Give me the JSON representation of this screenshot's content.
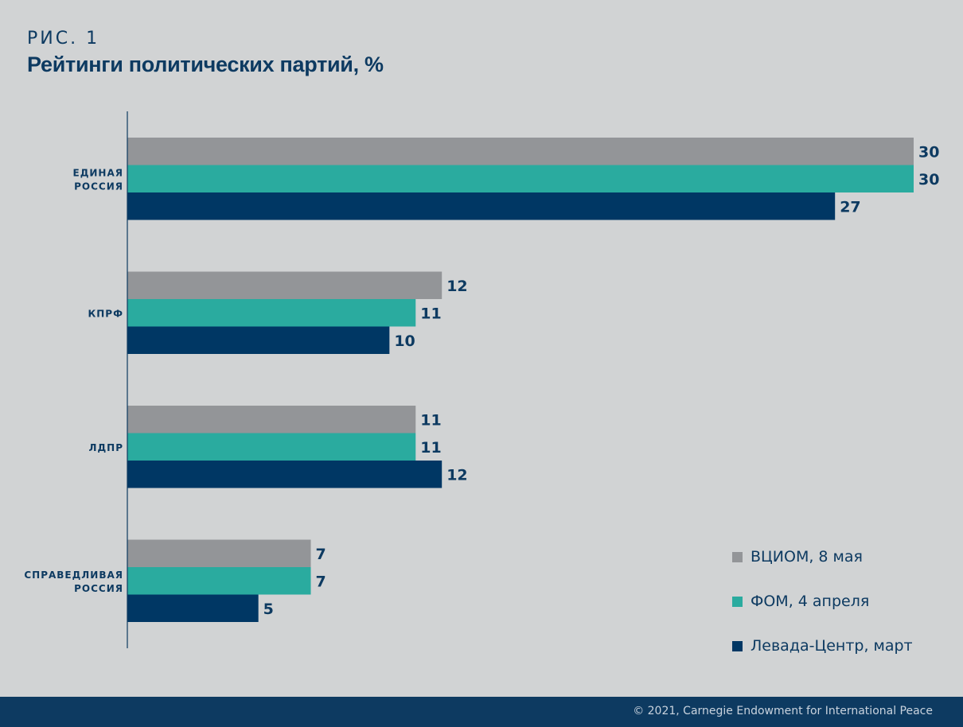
{
  "figure": {
    "label": "РИС. 1",
    "title": "Рейтинги политических партий, %"
  },
  "chart_data": {
    "type": "bar",
    "orientation": "horizontal",
    "categories": [
      [
        "ЕДИНАЯ",
        "РОССИЯ"
      ],
      [
        "КПРФ"
      ],
      [
        "ЛДПР"
      ],
      [
        "СПРАВЕДЛИВАЯ",
        "РОССИЯ"
      ]
    ],
    "series": [
      {
        "name": "ВЦИОМ, 8 мая",
        "color": "#939598",
        "values": [
          30,
          12,
          11,
          7
        ]
      },
      {
        "name": "ФОМ, 4 апреля",
        "color": "#2aab9f",
        "values": [
          30,
          11,
          11,
          7
        ]
      },
      {
        "name": "Левада-Центр, март",
        "color": "#003764",
        "values": [
          27,
          10,
          12,
          5
        ]
      }
    ],
    "xlim": [
      0,
      30
    ],
    "legend_position": "bottom-right",
    "grid": false
  },
  "footer": {
    "text": "© 2021, Carnegie Endowment for International Peace"
  }
}
